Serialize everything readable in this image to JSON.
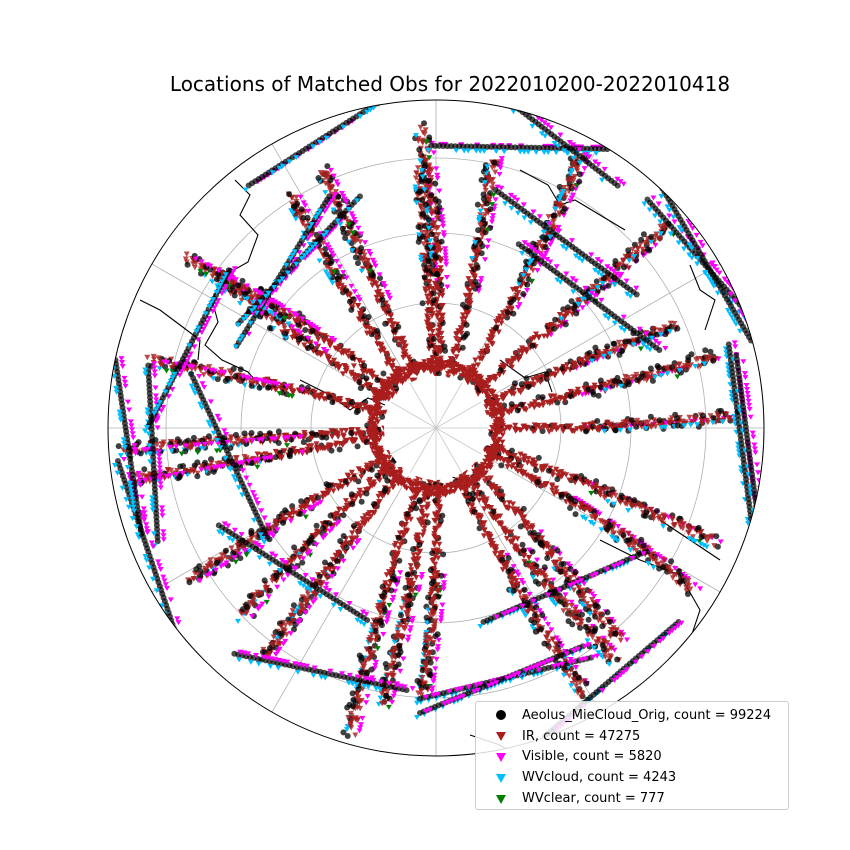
{
  "title": "Locations of Matched Obs for 2022010200-2022010418",
  "legend": [
    {
      "label": "Aeolus_MieCloud_Orig, count = 99224",
      "marker": "circle",
      "color": "#000000"
    },
    {
      "label": "IR, count = 47275",
      "marker": "triangle-down",
      "color": "#a91d1d"
    },
    {
      "label": "Visible, count = 5820",
      "marker": "triangle-down",
      "color": "#ff00ff"
    },
    {
      "label": "WVcloud, count = 4243",
      "marker": "triangle-down",
      "color": "#00bfff"
    },
    {
      "label": "WVclear, count = 777",
      "marker": "triangle-down",
      "color": "#008000"
    }
  ],
  "map": {
    "projection": "orthographic polar (North Pole centered)",
    "features": [
      "coastlines",
      "graticule"
    ],
    "colors": {
      "ir": "#a91d1d",
      "mie": "#000000",
      "visible": "#ff00ff",
      "wvcloud": "#00bfff",
      "wvclear": "#008000"
    }
  }
}
